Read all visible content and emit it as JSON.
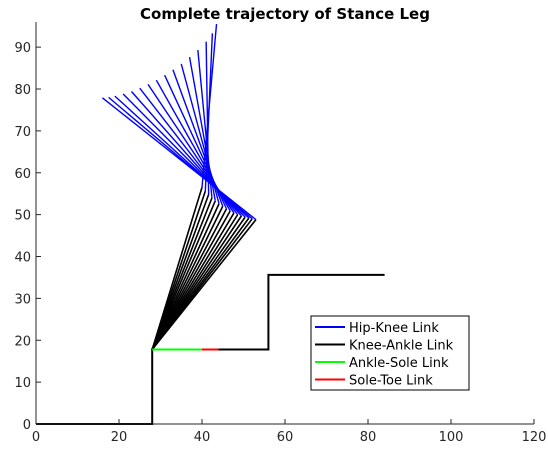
{
  "chart_data": {
    "type": "line",
    "title": "Complete trajectory of Stance Leg",
    "xlabel": "",
    "ylabel": "",
    "xlim": [
      0,
      120
    ],
    "ylim": [
      0,
      96
    ],
    "xticks": [
      0,
      20,
      40,
      60,
      80,
      100,
      120
    ],
    "yticks": [
      0,
      10,
      20,
      30,
      40,
      50,
      60,
      70,
      80,
      90
    ],
    "grid": false,
    "legend_position": "lower-right",
    "series": [
      {
        "name": "Hip-Knee Link",
        "color": "#0000ff",
        "knee_points": [
          {
            "x": 40,
            "y": 56.5
          },
          {
            "x": 40.8,
            "y": 55.6
          },
          {
            "x": 41.6,
            "y": 54.8
          },
          {
            "x": 42.4,
            "y": 54.0
          },
          {
            "x": 43.2,
            "y": 53.3
          },
          {
            "x": 44.1,
            "y": 52.6
          },
          {
            "x": 45.0,
            "y": 52.0
          },
          {
            "x": 45.9,
            "y": 51.4
          },
          {
            "x": 46.8,
            "y": 50.9
          },
          {
            "x": 47.7,
            "y": 50.4
          },
          {
            "x": 48.6,
            "y": 50.0
          },
          {
            "x": 49.5,
            "y": 49.7
          },
          {
            "x": 50.4,
            "y": 49.4
          },
          {
            "x": 51.3,
            "y": 49.2
          },
          {
            "x": 52.1,
            "y": 49.0
          },
          {
            "x": 53.0,
            "y": 48.8
          }
        ],
        "hip_points": [
          {
            "x": 43.5,
            "y": 95.5
          },
          {
            "x": 42.5,
            "y": 93.3
          },
          {
            "x": 41.0,
            "y": 91.3
          },
          {
            "x": 39.0,
            "y": 89.3
          },
          {
            "x": 37.0,
            "y": 87.6
          },
          {
            "x": 35.0,
            "y": 86.0
          },
          {
            "x": 33.0,
            "y": 84.6
          },
          {
            "x": 31.0,
            "y": 83.3
          },
          {
            "x": 29.0,
            "y": 82.1
          },
          {
            "x": 27.0,
            "y": 81.1
          },
          {
            "x": 25.0,
            "y": 80.2
          },
          {
            "x": 23.0,
            "y": 79.4
          },
          {
            "x": 21.0,
            "y": 78.8
          },
          {
            "x": 19.0,
            "y": 78.3
          },
          {
            "x": 17.5,
            "y": 78.0
          },
          {
            "x": 16.0,
            "y": 77.9
          }
        ]
      },
      {
        "name": "Knee-Ankle Link",
        "color": "#000000",
        "ankle_point": {
          "x": 28,
          "y": 17.8
        }
      },
      {
        "name": "Ankle-Sole Link",
        "color": "#00ff00",
        "points": [
          {
            "x": 28,
            "y": 17.8
          },
          {
            "x": 40,
            "y": 17.8
          }
        ]
      },
      {
        "name": "Sole-Toe Link",
        "color": "#ff0000",
        "points": [
          {
            "x": 40,
            "y": 17.8
          },
          {
            "x": 44,
            "y": 17.8
          }
        ]
      }
    ],
    "ground_profile": {
      "color": "#000000",
      "points": [
        {
          "x": 0,
          "y": 0
        },
        {
          "x": 28,
          "y": 0
        },
        {
          "x": 28,
          "y": 17.8
        },
        {
          "x": 56,
          "y": 17.8
        },
        {
          "x": 56,
          "y": 35.6
        },
        {
          "x": 84,
          "y": 35.6
        }
      ]
    }
  }
}
